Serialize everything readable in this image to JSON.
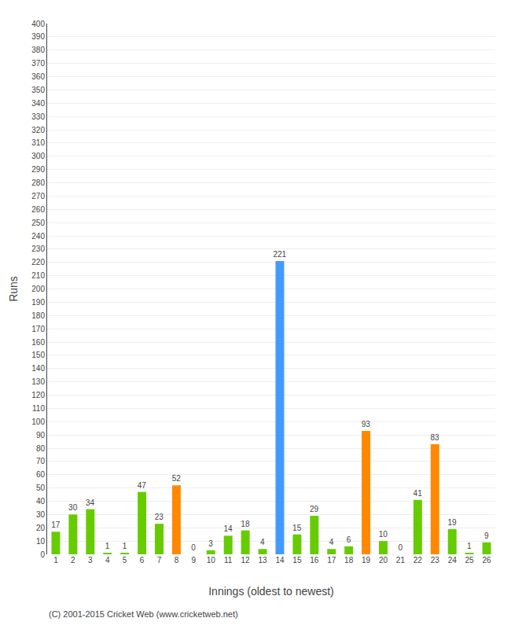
{
  "chart_data": {
    "type": "bar",
    "categories": [
      "1",
      "2",
      "3",
      "4",
      "5",
      "6",
      "7",
      "8",
      "9",
      "10",
      "11",
      "12",
      "13",
      "14",
      "15",
      "16",
      "17",
      "18",
      "19",
      "20",
      "21",
      "22",
      "23",
      "24",
      "25",
      "26"
    ],
    "values": [
      17,
      30,
      34,
      1,
      1,
      47,
      23,
      52,
      0,
      3,
      14,
      18,
      4,
      221,
      15,
      29,
      4,
      6,
      93,
      10,
      0,
      41,
      83,
      19,
      1,
      9
    ],
    "colors": [
      "#66cc00",
      "#66cc00",
      "#66cc00",
      "#66cc00",
      "#66cc00",
      "#66cc00",
      "#66cc00",
      "#ff8800",
      "#66cc00",
      "#66cc00",
      "#66cc00",
      "#66cc00",
      "#66cc00",
      "#4499ff",
      "#66cc00",
      "#66cc00",
      "#66cc00",
      "#66cc00",
      "#ff8800",
      "#66cc00",
      "#66cc00",
      "#66cc00",
      "#ff8800",
      "#66cc00",
      "#66cc00",
      "#66cc00"
    ],
    "x_label": "Innings (oldest to newest)",
    "y_label": "Runs",
    "ylim": [
      0,
      400
    ],
    "yticks": [
      0,
      10,
      20,
      30,
      40,
      50,
      60,
      70,
      80,
      90,
      100,
      110,
      120,
      130,
      140,
      150,
      160,
      170,
      180,
      190,
      200,
      210,
      220,
      230,
      240,
      250,
      260,
      270,
      280,
      290,
      300,
      310,
      320,
      330,
      340,
      350,
      360,
      370,
      380,
      390,
      400
    ],
    "grid": true,
    "data_labels": true,
    "annotations": [
      "(C) 2001-2015 Cricket Web (www.cricketweb.net)"
    ]
  }
}
